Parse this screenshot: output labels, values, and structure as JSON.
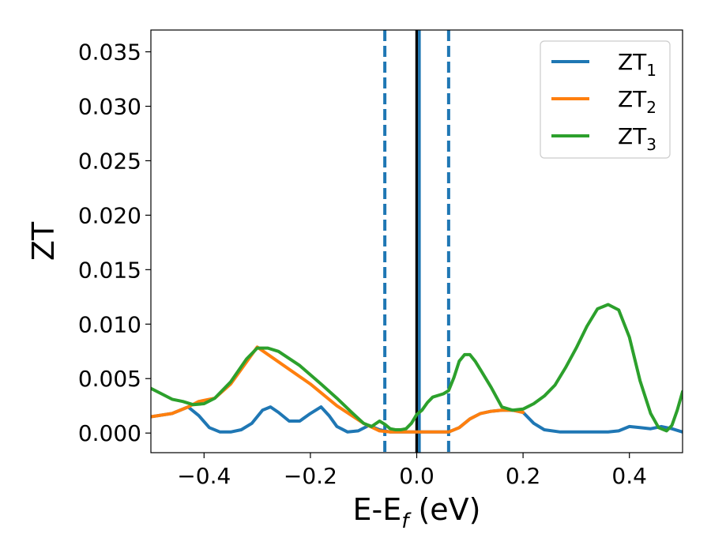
{
  "chart_data": {
    "type": "line",
    "xlabel": {
      "main": "E-E",
      "sub": "f",
      "unit": " (eV)"
    },
    "ylabel": "ZT",
    "xlim": [
      -0.5,
      0.5
    ],
    "ylim": [
      -0.0018,
      0.037
    ],
    "xticks": [
      {
        "value": -0.4,
        "label": "−0.4"
      },
      {
        "value": -0.2,
        "label": "−0.2"
      },
      {
        "value": 0.0,
        "label": "0.0"
      },
      {
        "value": 0.2,
        "label": "0.2"
      },
      {
        "value": 0.4,
        "label": "0.4"
      }
    ],
    "yticks": [
      {
        "value": 0.0,
        "label": "0.000"
      },
      {
        "value": 0.005,
        "label": "0.005"
      },
      {
        "value": 0.01,
        "label": "0.010"
      },
      {
        "value": 0.015,
        "label": "0.015"
      },
      {
        "value": 0.02,
        "label": "0.020"
      },
      {
        "value": 0.025,
        "label": "0.025"
      },
      {
        "value": 0.03,
        "label": "0.030"
      },
      {
        "value": 0.035,
        "label": "0.035"
      }
    ],
    "legend_position": "top-right",
    "series": [
      {
        "name": "ZT",
        "sub": "1",
        "color": "#1f77b4",
        "x": [
          -0.5,
          -0.46,
          -0.43,
          -0.41,
          -0.39,
          -0.37,
          -0.35,
          -0.33,
          -0.31,
          -0.29,
          -0.275,
          -0.26,
          -0.24,
          -0.22,
          -0.2,
          -0.18,
          -0.165,
          -0.15,
          -0.13,
          -0.11,
          -0.09,
          -0.07,
          -0.05,
          -0.03,
          -0.01,
          0.0,
          0.02,
          0.04,
          0.06,
          0.08,
          0.1,
          0.12,
          0.14,
          0.16,
          0.18,
          0.2,
          0.22,
          0.24,
          0.27,
          0.3,
          0.33,
          0.36,
          0.38,
          0.4,
          0.42,
          0.44,
          0.46,
          0.48,
          0.5
        ],
        "y": [
          0.0015,
          0.0018,
          0.0024,
          0.0016,
          0.0005,
          0.0001,
          0.0001,
          0.0003,
          0.0009,
          0.0021,
          0.0024,
          0.0019,
          0.0011,
          0.0011,
          0.0018,
          0.0024,
          0.0016,
          0.0006,
          0.0001,
          0.0002,
          0.0007,
          0.0003,
          0.0001,
          0.0001,
          0.0001,
          0.0001,
          0.0001,
          0.0001,
          0.0001,
          0.0005,
          0.0013,
          0.0018,
          0.002,
          0.0021,
          0.0021,
          0.0019,
          0.0009,
          0.0003,
          0.0001,
          0.0001,
          0.0001,
          0.0001,
          0.0002,
          0.0006,
          0.0005,
          0.0004,
          0.0006,
          0.0004,
          0.0001
        ]
      },
      {
        "name": "ZT",
        "sub": "2",
        "color": "#ff7f0e",
        "x": [
          -0.5,
          -0.46,
          -0.43,
          -0.41,
          -0.38,
          -0.35,
          -0.3,
          -0.2,
          -0.15,
          -0.1,
          -0.07,
          -0.05,
          -0.03,
          0.0,
          0.03,
          0.06,
          0.08,
          0.1,
          0.12,
          0.14,
          0.16,
          0.18,
          0.2
        ],
        "y": [
          0.0015,
          0.0018,
          0.0024,
          0.0029,
          0.0032,
          0.0045,
          0.0079,
          0.0045,
          0.0025,
          0.0009,
          0.0002,
          0.0001,
          0.0001,
          0.0001,
          0.0001,
          0.0001,
          0.0005,
          0.0013,
          0.0018,
          0.002,
          0.0021,
          0.0021,
          0.0019
        ]
      },
      {
        "name": "ZT",
        "sub": "3",
        "color": "#2ca02c",
        "x": [
          -0.5,
          -0.48,
          -0.46,
          -0.44,
          -0.42,
          -0.4,
          -0.38,
          -0.35,
          -0.32,
          -0.3,
          -0.28,
          -0.26,
          -0.22,
          -0.18,
          -0.15,
          -0.12,
          -0.1,
          -0.085,
          -0.07,
          -0.06,
          -0.05,
          -0.04,
          -0.03,
          -0.02,
          -0.01,
          0.0,
          0.01,
          0.02,
          0.03,
          0.05,
          0.06,
          0.07,
          0.08,
          0.09,
          0.1,
          0.11,
          0.12,
          0.14,
          0.16,
          0.18,
          0.2,
          0.22,
          0.24,
          0.26,
          0.28,
          0.3,
          0.32,
          0.34,
          0.36,
          0.38,
          0.4,
          0.42,
          0.44,
          0.455,
          0.47,
          0.48,
          0.49,
          0.5
        ],
        "y": [
          0.0041,
          0.0036,
          0.0031,
          0.0029,
          0.0026,
          0.0027,
          0.0032,
          0.0047,
          0.0068,
          0.0078,
          0.0078,
          0.0075,
          0.0062,
          0.0045,
          0.0032,
          0.0018,
          0.0009,
          0.0006,
          0.0011,
          0.0008,
          0.0004,
          0.0003,
          0.0003,
          0.0004,
          0.0009,
          0.0017,
          0.0021,
          0.0028,
          0.0033,
          0.0036,
          0.0039,
          0.0051,
          0.0066,
          0.0072,
          0.0072,
          0.0066,
          0.0058,
          0.0042,
          0.0024,
          0.0021,
          0.0022,
          0.0027,
          0.0034,
          0.0044,
          0.006,
          0.0078,
          0.0098,
          0.0114,
          0.0118,
          0.0113,
          0.0088,
          0.0048,
          0.0018,
          0.0005,
          0.0002,
          0.0007,
          0.0021,
          0.0038
        ]
      }
    ],
    "vlines": [
      {
        "x": -0.06,
        "style": "dashed",
        "color": "#1f77b4"
      },
      {
        "x": 0.0,
        "style": "solid",
        "color": "#000000"
      },
      {
        "x": 0.005,
        "style": "solid",
        "color": "#1f77b4"
      },
      {
        "x": 0.06,
        "style": "dashed",
        "color": "#1f77b4"
      }
    ]
  }
}
